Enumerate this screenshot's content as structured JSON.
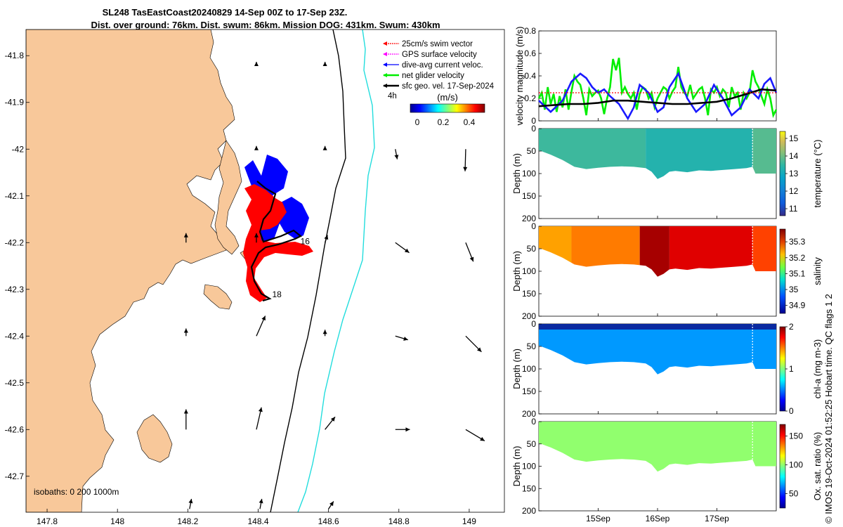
{
  "title": {
    "line1": "SL248 TasEastCoast20240829 14-Sep 00Z to 17-Sep 23Z.",
    "line2": "Dist. over ground: 76km. Dist. swum: 86km. Mission DOG: 431km. Swum: 430km"
  },
  "colors": {
    "land": "#f8c89a",
    "glider_track_blue": "#0000ff",
    "glider_track_red": "#ff0000",
    "isobath_200": "#000000",
    "isobath_1000": "#22dddd",
    "speed_green": "#00ee00",
    "speed_blue": "#1a1aff",
    "speed_black": "#000000",
    "speed_red": "#ff0000"
  },
  "map": {
    "lon_ticks": [
      "147.8",
      "148",
      "148.2",
      "148.4",
      "148.6",
      "148.8",
      "149"
    ],
    "lat_ticks": [
      "-41.8",
      "-41.9",
      "-42",
      "-42.1",
      "-42.2",
      "-42.3",
      "-42.4",
      "-42.5",
      "-42.6",
      "-42.7"
    ],
    "lon_range": [
      147.74,
      149.1
    ],
    "lat_range": [
      -42.777,
      -41.744
    ],
    "legend": [
      {
        "label": "25cm/s swim vector",
        "color": "#ff0000"
      },
      {
        "label": "GPS surface velocity",
        "color": "#ff00ff"
      },
      {
        "label": "dive-avg current veloc.",
        "color": "#0000ff"
      },
      {
        "label": "net glider velocity",
        "color": "#00ee00"
      },
      {
        "label": "sfc geo. vel. 17-Sep-2024",
        "color": "#000000"
      }
    ],
    "interval_label": "4h",
    "colorbar_title": "(m/s)",
    "colorbar_ticks": [
      "0",
      "0.2",
      "0.4"
    ],
    "day_labels": [
      {
        "text": "16",
        "lon": 148.52,
        "lat": -42.197
      },
      {
        "text": "18",
        "lon": 148.44,
        "lat": -42.311
      }
    ],
    "isobath_label": "isobaths: 0   200  1000m",
    "vectors": [
      [
        148.395,
        -41.82,
        0,
        0.5
      ],
      [
        148.59,
        -41.82,
        0,
        0.5
      ],
      [
        148.395,
        -42.0,
        0,
        0.5
      ],
      [
        148.59,
        -42.0,
        0,
        0.5
      ],
      [
        148.79,
        -42.0,
        0.3,
        -1.6
      ],
      [
        148.99,
        -42.0,
        -0.1,
        -3.5
      ],
      [
        148.195,
        -42.2,
        0,
        1.5
      ],
      [
        148.395,
        -42.2,
        0,
        1.5
      ],
      [
        148.59,
        -42.2,
        0.4,
        1.2
      ],
      [
        148.79,
        -42.2,
        2.2,
        -1.6
      ],
      [
        148.99,
        -42.2,
        1.2,
        -3.0
      ],
      [
        148.195,
        -42.4,
        0,
        1.2
      ],
      [
        148.395,
        -42.4,
        1.4,
        3.2
      ],
      [
        148.59,
        -42.4,
        0,
        1.0
      ],
      [
        148.79,
        -42.4,
        2.0,
        -0.6
      ],
      [
        148.99,
        -42.4,
        2.5,
        -2.5
      ],
      [
        148.195,
        -42.6,
        0,
        3.2
      ],
      [
        148.395,
        -42.6,
        0.8,
        3.5
      ],
      [
        148.59,
        -42.6,
        1.6,
        2.0
      ],
      [
        148.79,
        -42.6,
        2.3,
        0
      ],
      [
        148.99,
        -42.6,
        3.0,
        -1.8
      ],
      [
        148.205,
        -42.77,
        0.3,
        1.6
      ],
      [
        148.405,
        -42.77,
        0.3,
        1.6
      ],
      [
        148.6,
        -42.77,
        0.8,
        1.2
      ]
    ]
  },
  "chart_data": [
    {
      "type": "line",
      "ylabel": "velocity magnitude (m/s)",
      "ylim": [
        0,
        0.8
      ],
      "yticks": [
        "0",
        "0.2",
        "0.4",
        "0.6",
        "0.8"
      ],
      "xlim": [
        0,
        4
      ],
      "series": [
        {
          "name": "net glider velocity",
          "color": "#00ee00",
          "x": [
            0,
            0.05,
            0.1,
            0.15,
            0.2,
            0.25,
            0.3,
            0.35,
            0.4,
            0.45,
            0.5,
            0.55,
            0.6,
            0.65,
            0.7,
            0.75,
            0.8,
            0.85,
            0.9,
            0.95,
            1.0,
            1.05,
            1.1,
            1.15,
            1.2,
            1.25,
            1.3,
            1.35,
            1.4,
            1.45,
            1.5,
            1.55,
            1.6,
            1.65,
            1.7,
            1.75,
            1.8,
            1.85,
            1.9,
            1.95,
            2.0,
            2.05,
            2.1,
            2.15,
            2.2,
            2.25,
            2.3,
            2.35,
            2.4,
            2.45,
            2.5,
            2.55,
            2.6,
            2.65,
            2.7,
            2.75,
            2.8,
            2.85,
            2.9,
            2.95,
            3.0,
            3.05,
            3.1,
            3.15,
            3.2,
            3.25,
            3.3,
            3.35,
            3.4,
            3.45,
            3.5,
            3.55,
            3.6,
            3.65,
            3.7,
            3.75,
            3.8,
            3.85,
            3.9,
            3.95,
            4.0
          ],
          "values": [
            0.2,
            0.25,
            0.1,
            0.3,
            0.15,
            0.24,
            0.08,
            0.22,
            0.12,
            0.28,
            0.1,
            0.26,
            0.4,
            0.35,
            0.32,
            0.2,
            0.05,
            0.28,
            0.22,
            0.25,
            0.27,
            0.2,
            0.06,
            0.2,
            0.3,
            0.55,
            0.45,
            0.56,
            0.25,
            0.3,
            0.24,
            0.2,
            0.25,
            0.1,
            0.24,
            0.3,
            0.28,
            0.2,
            0.25,
            0.12,
            0.2,
            0.25,
            0.3,
            0.28,
            0.2,
            0.26,
            0.3,
            0.48,
            0.3,
            0.25,
            0.22,
            0.32,
            0.2,
            0.24,
            0.28,
            0.3,
            0.2,
            0.05,
            0.28,
            0.25,
            0.3,
            0.22,
            0.28,
            0.25,
            0.12,
            0.3,
            0.22,
            0.25,
            0.1,
            0.25,
            0.2,
            0.25,
            0.45,
            0.35,
            0.3,
            0.22,
            0.15,
            0.28,
            0.2,
            0.05,
            0.1
          ]
        },
        {
          "name": "dive-avg current",
          "color": "#1a1aff",
          "x": [
            0,
            0.2,
            0.4,
            0.55,
            0.7,
            0.8,
            0.9,
            1.0,
            1.1,
            1.2,
            1.35,
            1.5,
            1.6,
            1.7,
            1.85,
            2.0,
            2.1,
            2.2,
            2.35,
            2.5,
            2.65,
            2.8,
            2.95,
            3.1,
            3.25,
            3.4,
            3.55,
            3.7,
            3.8,
            3.9,
            4.0
          ],
          "values": [
            0.18,
            0.08,
            0.18,
            0.35,
            0.42,
            0.38,
            0.3,
            0.25,
            0.28,
            0.22,
            0.15,
            0.02,
            0.12,
            0.32,
            0.25,
            0.08,
            0.12,
            0.3,
            0.42,
            0.2,
            0.08,
            0.15,
            0.32,
            0.2,
            0.05,
            0.12,
            0.28,
            0.2,
            0.33,
            0.38,
            0.25
          ]
        },
        {
          "name": "sfc geo. vel.",
          "color": "#000000",
          "x": [
            0,
            0.25,
            0.5,
            0.75,
            1.0,
            1.25,
            1.5,
            1.75,
            2.0,
            2.25,
            2.5,
            2.75,
            3.0,
            3.25,
            3.5,
            3.75,
            4.0
          ],
          "values": [
            0.13,
            0.14,
            0.15,
            0.15,
            0.16,
            0.18,
            0.18,
            0.17,
            0.16,
            0.15,
            0.15,
            0.16,
            0.17,
            0.2,
            0.24,
            0.28,
            0.27
          ]
        },
        {
          "name": "swim",
          "color": "#ff0000",
          "x": [
            0,
            4
          ],
          "values": [
            0.25,
            0.25
          ]
        }
      ]
    },
    {
      "type": "heatmap",
      "ylabel": "Depth (m)",
      "clabel": "temperature (°C)",
      "yticks": [
        "0",
        "50",
        "100",
        "150",
        "200"
      ],
      "cticks": [
        "11",
        "12",
        "13",
        "14",
        "15"
      ],
      "crange": [
        10.6,
        15.4
      ],
      "bands": [
        {
          "x": [
            0,
            1.8
          ],
          "value": 13.6
        },
        {
          "x": [
            1.8,
            3.6
          ],
          "value": 13.3
        },
        {
          "x": [
            3.6,
            4.0
          ],
          "value": 13.8
        }
      ]
    },
    {
      "type": "heatmap",
      "ylabel": "Depth (m)",
      "clabel": "salinity",
      "yticks": [
        "0",
        "50",
        "100",
        "150",
        "200"
      ],
      "cticks": [
        "34.9",
        "35",
        "35.1",
        "35.2",
        "35.3"
      ],
      "crange": [
        34.85,
        35.38
      ],
      "bands": [
        {
          "x": [
            0,
            0.55
          ],
          "value": 35.23
        },
        {
          "x": [
            0.55,
            1.7
          ],
          "value": 35.25
        },
        {
          "x": [
            1.7,
            2.2
          ],
          "value": 35.36
        },
        {
          "x": [
            2.2,
            3.6
          ],
          "value": 35.33
        },
        {
          "x": [
            3.6,
            4.0
          ],
          "value": 35.28
        }
      ]
    },
    {
      "type": "heatmap",
      "ylabel": "Depth (m)",
      "clabel": "chl-a (mg m-3)",
      "yticks": [
        "0",
        "50",
        "100",
        "150",
        "200"
      ],
      "cticks": [
        "0",
        "1",
        "2"
      ],
      "crange": [
        0,
        2
      ],
      "bands": [
        {
          "x": [
            0,
            4.0
          ],
          "value": 0.55
        }
      ]
    },
    {
      "type": "heatmap",
      "ylabel": "Depth (m)",
      "clabel": "Ox. sat. ratio (%)",
      "yticks": [
        "0",
        "50",
        "100",
        "150",
        "200"
      ],
      "cticks": [
        "50",
        "100",
        "150"
      ],
      "crange": [
        25,
        170
      ],
      "bands": [
        {
          "x": [
            0,
            4.0
          ],
          "value": 100
        }
      ]
    }
  ],
  "time_axis": {
    "ticks": [
      {
        "label": "15Sep",
        "x": 1
      },
      {
        "label": "16Sep",
        "x": 2
      },
      {
        "label": "17Sep",
        "x": 3
      }
    ]
  },
  "section_bottom": {
    "x": [
      0,
      0.2,
      0.4,
      0.6,
      0.8,
      1.0,
      1.2,
      1.4,
      1.6,
      1.8,
      1.9,
      2.0,
      2.1,
      2.2,
      2.3,
      2.5,
      2.7,
      2.9,
      3.1,
      3.3,
      3.5,
      3.6,
      3.65,
      4.0
    ],
    "depth": [
      48,
      58,
      70,
      85,
      90,
      87,
      85,
      84,
      85,
      88,
      96,
      112,
      106,
      96,
      94,
      97,
      93,
      94,
      92,
      90,
      88,
      85,
      100,
      100
    ]
  },
  "footer": "© IMOS 19-Oct-2024 01:52:25 Hobart time. QC flags 1  2"
}
